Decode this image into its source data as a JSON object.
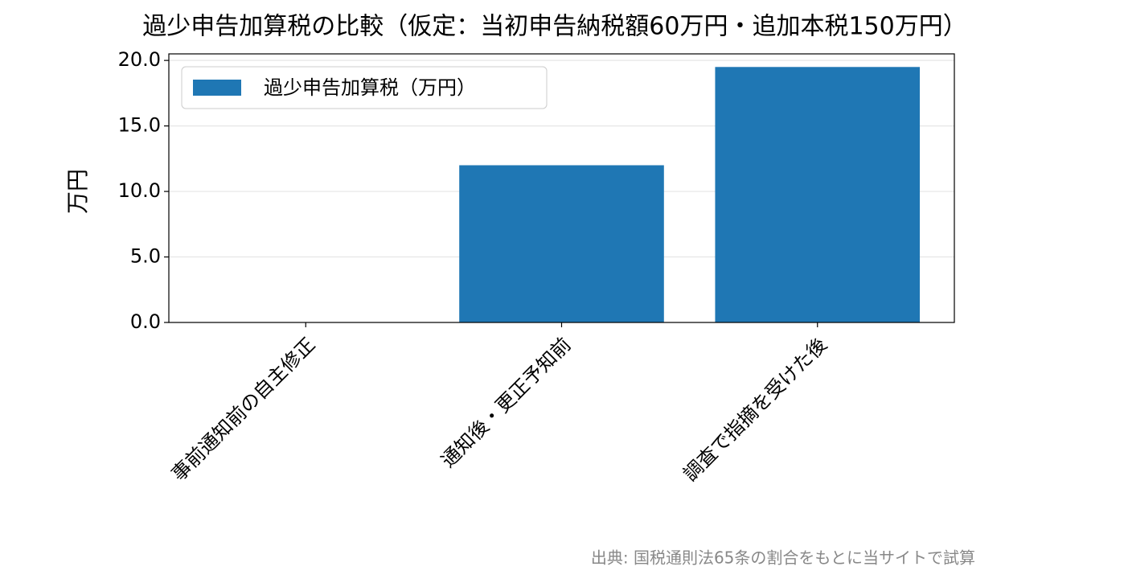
{
  "chart_data": {
    "type": "bar",
    "title": "過少申告加算税の比較（仮定：当初申告納税額60万円・追加本税150万円）",
    "ylabel": "万円",
    "categories": [
      "事前通知前の自主修正",
      "通知後・更正予知前",
      "調査で指摘を受けた後"
    ],
    "series": [
      {
        "name": "過少申告加算税（万円）",
        "color": "#1f77b4",
        "values": [
          0,
          12,
          19.5
        ]
      }
    ],
    "ylim": [
      0,
      20.5
    ],
    "yticks": [
      {
        "value": 0,
        "label": "0.0"
      },
      {
        "value": 5,
        "label": "5.0"
      },
      {
        "value": 10,
        "label": "10.0"
      },
      {
        "value": 15,
        "label": "15.0"
      },
      {
        "value": 20,
        "label": "20.0"
      }
    ],
    "grid": true,
    "legend": "upper left",
    "source": "出典: 国税通則法65条の割合をもとに当サイトで試算"
  }
}
